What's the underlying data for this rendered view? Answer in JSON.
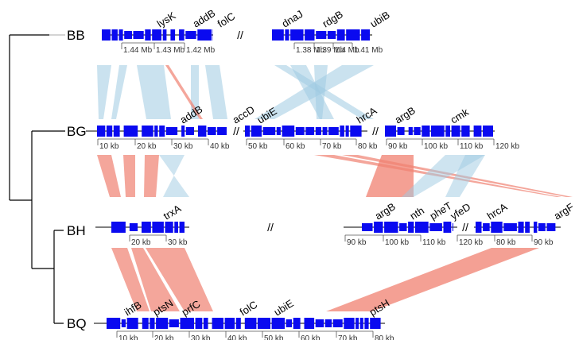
{
  "colors": {
    "gene_block": "#0a0af0",
    "link_same": "#f08070",
    "link_inverted": "#9ecae1",
    "backbone": "#000000",
    "axis": "#555555"
  },
  "genomes": [
    {
      "name": "BB",
      "gene_labels": [
        "lysK",
        "addB",
        "folC",
        "dnaJ",
        "rdgB",
        "ubiB"
      ],
      "segments": [
        {
          "ticks": [
            "1.44 Mb",
            "1.43 Mb",
            "1.42 Mb"
          ]
        },
        {
          "ticks": [
            "1.38 Mb",
            "1.39 Mb",
            "1.4 Mb",
            "1.41 Mb"
          ]
        }
      ]
    },
    {
      "name": "BG",
      "gene_labels": [
        "addB",
        "accD",
        "ubiE",
        "hrcA",
        "argB",
        "cmk"
      ],
      "segments": [
        {
          "ticks": [
            "10 kb",
            "20 kb",
            "30 kb",
            "40 kb"
          ]
        },
        {
          "ticks": [
            "50 kb",
            "60 kb",
            "70 kb",
            "80 kb"
          ]
        },
        {
          "ticks": [
            "90 kb",
            "100 kb",
            "110 kb",
            "120 kb"
          ]
        }
      ]
    },
    {
      "name": "BH",
      "gene_labels": [
        "trxA",
        "argB",
        "nth",
        "pheT",
        "yfeD",
        "hrcA",
        "argF"
      ],
      "segments": [
        {
          "ticks": [
            "20 kb",
            "30 kb"
          ]
        },
        {
          "ticks": [
            "90 kb",
            "100 kb",
            "110 kb"
          ]
        },
        {
          "ticks": [
            "120 kb",
            "80 kb",
            "90 kb"
          ]
        }
      ]
    },
    {
      "name": "BQ",
      "gene_labels": [
        "ihfB",
        "ptsN",
        "prfC",
        "folC",
        "ubiE",
        "ptsH"
      ],
      "segments": [
        {
          "ticks": [
            "10 kb",
            "20 kb",
            "30 kb",
            "40 kb",
            "50 kb",
            "60 kb",
            "70 kb",
            "80 kb"
          ]
        }
      ]
    }
  ],
  "break_symbol": "//"
}
